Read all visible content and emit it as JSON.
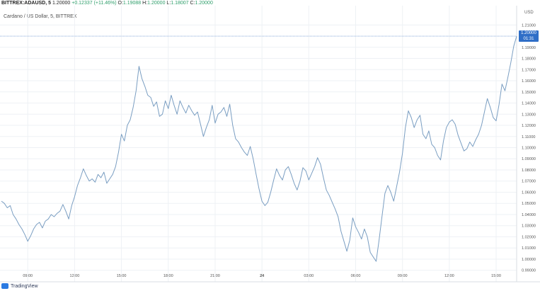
{
  "header": {
    "symbol": "BITTREX:ADAUSD, 5",
    "last": "1.20000",
    "change": "+0.12337 (+11.46%)",
    "o_label": "O:",
    "o": "1.19088",
    "h_label": "H:",
    "h": "1.20000",
    "l_label": "L:",
    "l": "1.18007",
    "c_label": "C:",
    "c": "1.20000"
  },
  "subtitle": "Cardano / US Dollar, 5, BITTREX",
  "price_tag": {
    "price": "1.20000",
    "countdown": "01:31"
  },
  "axis_unit": "USD",
  "footer": {
    "brand": "TradingView"
  },
  "colors": {
    "line": "#7a9ec2",
    "grid": "#eef1f5",
    "accent": "#2f6ec7",
    "up": "#2e9e6a"
  },
  "chart_data": {
    "type": "line",
    "title": "",
    "xlabel": "",
    "ylabel": "",
    "x_ticks": [
      "09:00",
      "12:00",
      "15:00",
      "18:00",
      "21:00",
      "24",
      "03:00",
      "06:00",
      "09:00",
      "12:00",
      "15:00"
    ],
    "x_tick_index": [
      9,
      25,
      41,
      57,
      73,
      89,
      105,
      121,
      137,
      153,
      169
    ],
    "y_ticks": [
      "0.99000",
      "1.00000",
      "1.01000",
      "1.02000",
      "1.03000",
      "1.04000",
      "1.05000",
      "1.06000",
      "1.07000",
      "1.08000",
      "1.09000",
      "1.10000",
      "1.11000",
      "1.12000",
      "1.13000",
      "1.14000",
      "1.15000",
      "1.16000",
      "1.17000",
      "1.18000",
      "1.19000",
      "1.20000",
      "1.21000"
    ],
    "ylim": [
      0.986,
      1.214
    ],
    "grid": true,
    "series": [
      {
        "values": [
          1.052,
          1.05,
          1.046,
          1.048,
          1.04,
          1.036,
          1.031,
          1.027,
          1.022,
          1.016,
          1.021,
          1.027,
          1.031,
          1.033,
          1.028,
          1.034,
          1.036,
          1.04,
          1.038,
          1.041,
          1.043,
          1.049,
          1.043,
          1.036,
          1.048,
          1.056,
          1.066,
          1.073,
          1.081,
          1.075,
          1.07,
          1.072,
          1.069,
          1.076,
          1.073,
          1.078,
          1.068,
          1.072,
          1.076,
          1.083,
          1.096,
          1.112,
          1.106,
          1.12,
          1.125,
          1.136,
          1.151,
          1.173,
          1.162,
          1.155,
          1.147,
          1.145,
          1.137,
          1.141,
          1.128,
          1.13,
          1.142,
          1.135,
          1.147,
          1.138,
          1.13,
          1.142,
          1.136,
          1.131,
          1.138,
          1.133,
          1.129,
          1.132,
          1.121,
          1.11,
          1.118,
          1.125,
          1.138,
          1.122,
          1.13,
          1.132,
          1.136,
          1.128,
          1.139,
          1.12,
          1.108,
          1.105,
          1.1,
          1.096,
          1.093,
          1.101,
          1.09,
          1.076,
          1.063,
          1.052,
          1.048,
          1.051,
          1.06,
          1.071,
          1.081,
          1.075,
          1.071,
          1.08,
          1.083,
          1.076,
          1.068,
          1.062,
          1.07,
          1.082,
          1.079,
          1.071,
          1.077,
          1.083,
          1.091,
          1.085,
          1.073,
          1.062,
          1.057,
          1.051,
          1.045,
          1.038,
          1.025,
          1.016,
          1.007,
          1.017,
          1.037,
          1.029,
          1.024,
          1.018,
          1.027,
          1.02,
          1.006,
          1.002,
          0.998,
          1.017,
          1.038,
          1.059,
          1.066,
          1.06,
          1.052,
          1.065,
          1.078,
          1.095,
          1.118,
          1.133,
          1.127,
          1.118,
          1.125,
          1.129,
          1.112,
          1.108,
          1.115,
          1.103,
          1.1,
          1.093,
          1.089,
          1.106,
          1.118,
          1.123,
          1.125,
          1.121,
          1.111,
          1.104,
          1.097,
          1.099,
          1.105,
          1.101,
          1.107,
          1.112,
          1.12,
          1.132,
          1.144,
          1.136,
          1.127,
          1.124,
          1.139,
          1.157,
          1.151,
          1.163,
          1.176,
          1.191,
          1.2
        ]
      }
    ]
  }
}
